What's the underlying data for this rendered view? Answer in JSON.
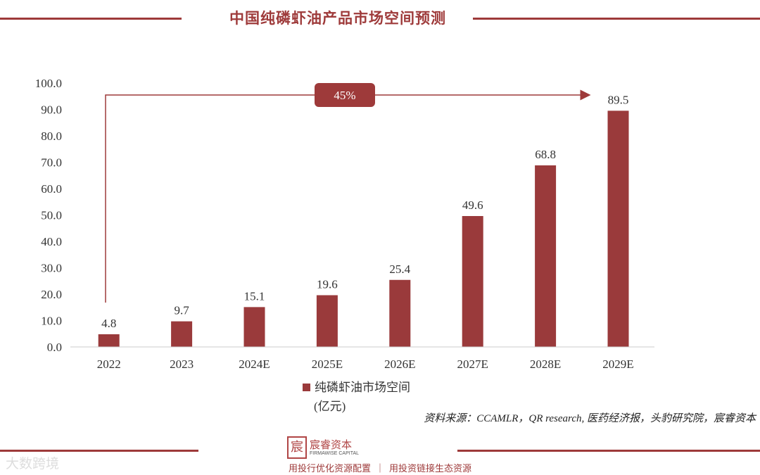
{
  "header": {
    "title": "中国纯磷虾油产品市场空间预测"
  },
  "chart_data": {
    "type": "bar",
    "title": "中国纯磷虾油产品市场空间预测",
    "categories": [
      "2022",
      "2023",
      "2024E",
      "2025E",
      "2026E",
      "2027E",
      "2028E",
      "2029E"
    ],
    "series": [
      {
        "name": "纯磷虾油市场空间",
        "values": [
          4.8,
          9.7,
          15.1,
          19.6,
          25.4,
          49.6,
          68.8,
          89.5
        ]
      }
    ],
    "data_labels": [
      "4.8",
      "9.7",
      "15.1",
      "19.6",
      "25.4",
      "49.6",
      "68.8",
      "89.5"
    ],
    "yticks": [
      "0.0",
      "10.0",
      "20.0",
      "30.0",
      "40.0",
      "50.0",
      "60.0",
      "70.0",
      "80.0",
      "90.0",
      "100.0"
    ],
    "ylim": [
      0,
      100
    ],
    "unit": "(亿元)",
    "annotation": "45%",
    "legend_position": "bottom",
    "grid": false,
    "bar_color": "#9a3a3b"
  },
  "footer": {
    "source": "资料来源：CCAMLR，QR research, 医药经济报，头豹研究院，宸睿资本",
    "logo_cn": "宸睿资本",
    "logo_en": "FIRMAWISE CAPITAL",
    "slogan": "用投行优化资源配置  ｜  用投资链接生态资源",
    "watermark": "大数跨境"
  },
  "colors": {
    "accent": "#9e3a3a"
  }
}
